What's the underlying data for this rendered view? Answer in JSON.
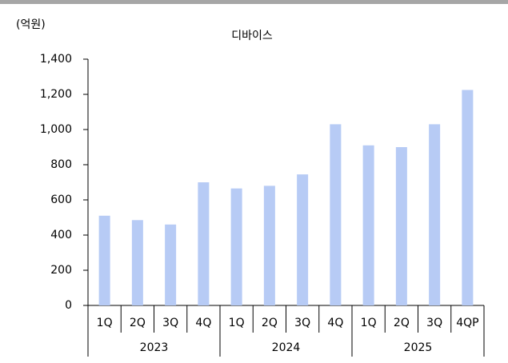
{
  "chart_data": {
    "type": "bar",
    "title": "디바이스",
    "y_unit": "(억원)",
    "categories": [
      "1Q",
      "2Q",
      "3Q",
      "4Q",
      "1Q",
      "2Q",
      "3Q",
      "4Q",
      "1Q",
      "2Q",
      "3Q",
      "4QP"
    ],
    "x_groups": [
      "2023",
      "2024",
      "2025"
    ],
    "values": [
      510,
      485,
      460,
      700,
      665,
      680,
      745,
      1030,
      910,
      900,
      1030,
      1225
    ],
    "color": "#b7cbf5",
    "ylim": [
      0,
      1400
    ],
    "yticks": [
      0,
      200,
      400,
      600,
      800,
      {
        "value": 1000,
        "label": "1,000"
      },
      {
        "value": 1200,
        "label": "1,200"
      },
      {
        "value": 1400,
        "label": "1,400"
      }
    ],
    "grid": false
  }
}
